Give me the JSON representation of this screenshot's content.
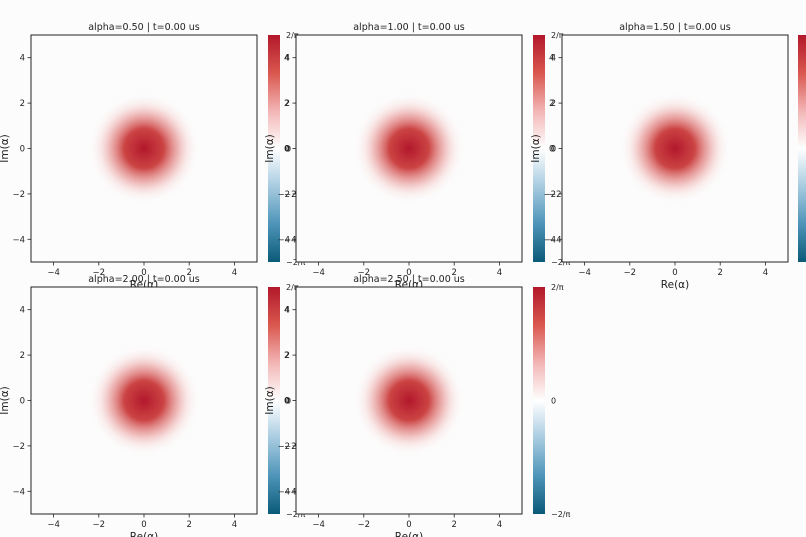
{
  "figure": {
    "suptitle": ""
  },
  "colorbar": {
    "top_label": "2/π",
    "mid_label": "0",
    "bottom_label": "−2/π",
    "colors": [
      "#0b5a78",
      "#4d94b8",
      "#a7cbe0",
      "#ffffff",
      "#f2b4b4",
      "#d9574e",
      "#b2182b"
    ]
  },
  "chart_data": [
    {
      "type": "heatmap",
      "title": "alpha=0.50 | t=0.00 us",
      "xlabel": "Re(α)",
      "ylabel": "Im(α)",
      "xlim": [
        -5,
        5
      ],
      "ylim": [
        -5,
        5
      ],
      "xticks": [
        -4,
        -2,
        0,
        2,
        4
      ],
      "yticks": [
        -4,
        -2,
        0,
        2,
        4
      ],
      "peak": {
        "x": 0,
        "y": 0,
        "value": "2/π"
      },
      "color_range": [
        "-2/π",
        "2/π"
      ],
      "colorbar_ticks": [
        4,
        2,
        0,
        -2,
        -4
      ]
    },
    {
      "type": "heatmap",
      "title": "alpha=1.00 | t=0.00 us",
      "xlabel": "Re(α)",
      "ylabel": "Im(α)",
      "xlim": [
        -5,
        5
      ],
      "ylim": [
        -5,
        5
      ],
      "xticks": [
        -4,
        -2,
        0,
        2,
        4
      ],
      "yticks": [
        -4,
        -2,
        0,
        2,
        4
      ],
      "peak": {
        "x": 0,
        "y": 0,
        "value": "2/π"
      },
      "color_range": [
        "-2/π",
        "2/π"
      ],
      "colorbar_ticks": [
        4,
        2,
        0,
        -2,
        -4
      ]
    },
    {
      "type": "heatmap",
      "title": "alpha=1.50 | t=0.00 us",
      "xlabel": "Re(α)",
      "ylabel": "Im(α)",
      "xlim": [
        -5,
        5
      ],
      "ylim": [
        -5,
        5
      ],
      "xticks": [
        -4,
        -2,
        0,
        2,
        4
      ],
      "yticks": [
        -4,
        -2,
        0,
        2,
        4
      ],
      "peak": {
        "x": 0,
        "y": 0,
        "value": "2/π"
      },
      "color_range": [
        "-2/π",
        "2/π"
      ],
      "colorbar_ticks": []
    },
    {
      "type": "heatmap",
      "title": "alpha=2.00 | t=0.00 us",
      "xlabel": "Re(α)",
      "ylabel": "Im(α)",
      "xlim": [
        -5,
        5
      ],
      "ylim": [
        -5,
        5
      ],
      "xticks": [
        -4,
        -2,
        0,
        2,
        4
      ],
      "yticks": [
        -4,
        -2,
        0,
        2,
        4
      ],
      "peak": {
        "x": 0,
        "y": 0,
        "value": "2/π"
      },
      "color_range": [
        "-2/π",
        "2/π"
      ],
      "colorbar_ticks": [
        4,
        2,
        0,
        -2,
        -4
      ]
    },
    {
      "type": "heatmap",
      "title": "alpha=2.50 | t=0.00 us",
      "xlabel": "Re(α)",
      "ylabel": "Im(α)",
      "xlim": [
        -5,
        5
      ],
      "ylim": [
        -5,
        5
      ],
      "xticks": [
        -4,
        -2,
        0,
        2,
        4
      ],
      "yticks": [
        -4,
        -2,
        0,
        2,
        4
      ],
      "peak": {
        "x": 0,
        "y": 0,
        "value": "2/π"
      },
      "color_range": [
        "-2/π",
        "2/π"
      ],
      "colorbar_ticks": []
    }
  ]
}
